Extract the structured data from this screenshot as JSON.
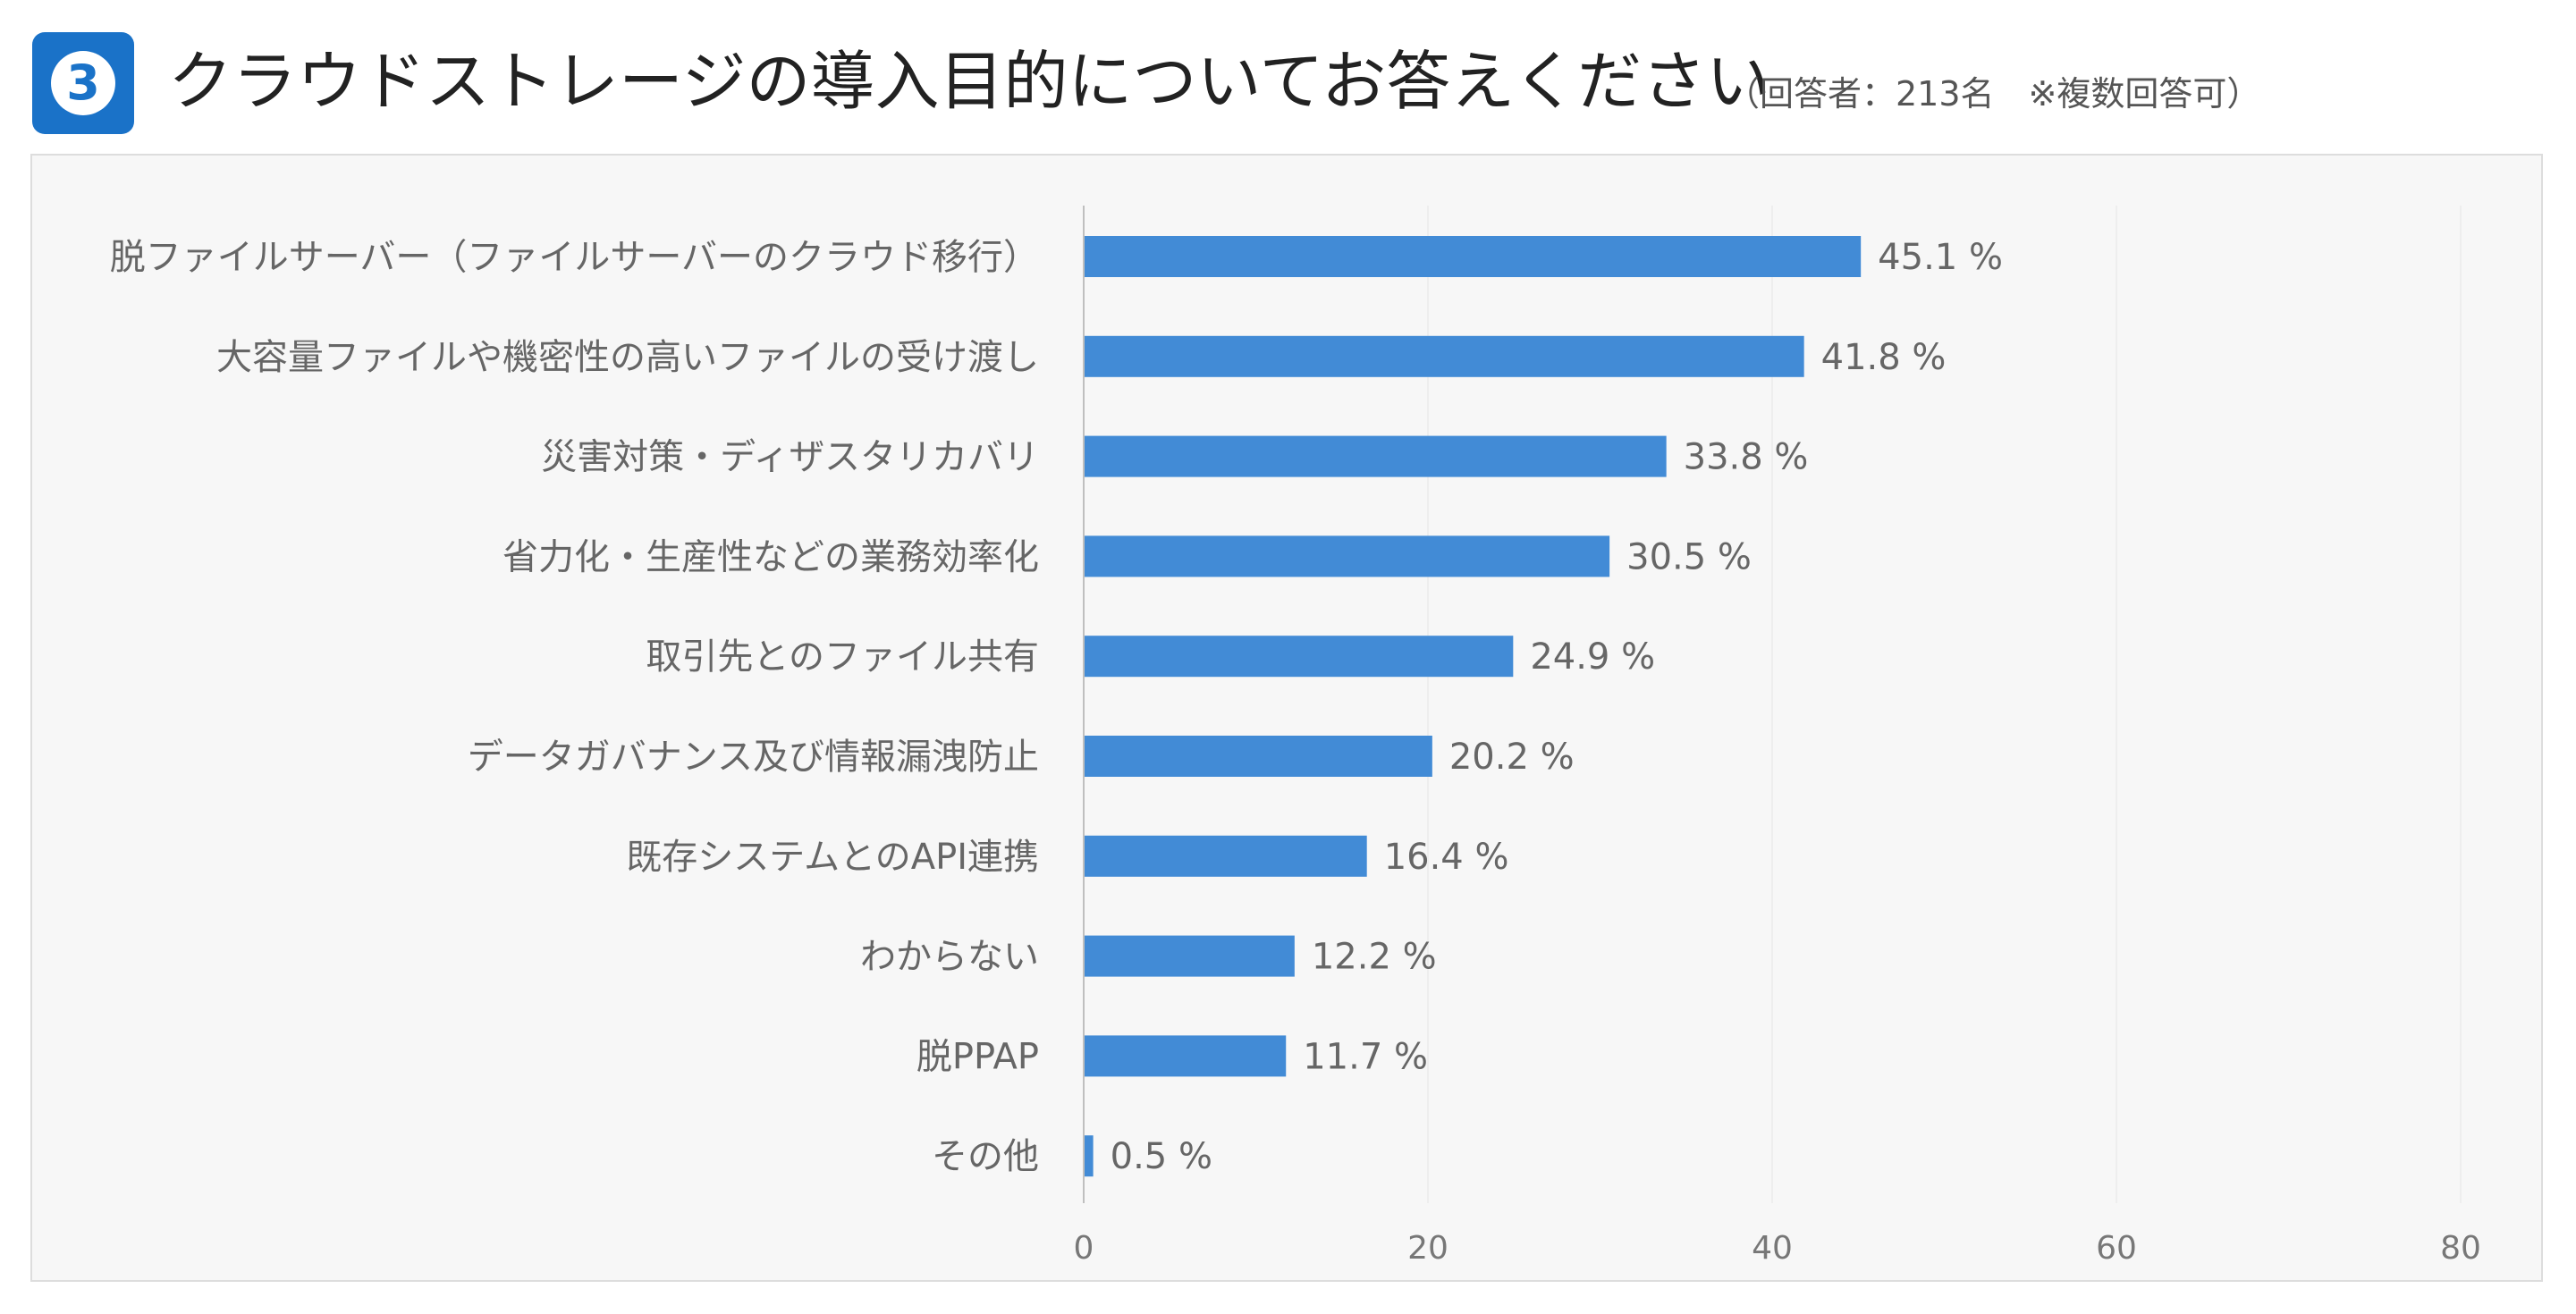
{
  "header": {
    "badge_number": "3",
    "title": "クラウドストレージの導入目的についてお答えください",
    "subtitle": "（回答者：213名　※複数回答可）"
  },
  "chart_data": {
    "type": "bar",
    "orientation": "horizontal",
    "categories": [
      "脱ファイルサーバー（ファイルサーバーのクラウド移行）",
      "大容量ファイルや機密性の高いファイルの受け渡し",
      "災害対策・ディザスタリカバリ",
      "省力化・生産性などの業務効率化",
      "取引先とのファイル共有",
      "データガバナンス及び情報漏洩防止",
      "既存システムとのAPI連携",
      "わからない",
      "脱PPAP",
      "その他"
    ],
    "values": [
      45.1,
      41.8,
      33.8,
      30.5,
      24.9,
      20.2,
      16.4,
      12.2,
      11.7,
      0.5
    ],
    "value_labels": [
      "45.1 %",
      "41.8 %",
      "33.8 %",
      "30.5 %",
      "24.9 %",
      "20.2 %",
      "16.4 %",
      "12.2 %",
      "11.7 %",
      "0.5 %"
    ],
    "xlim": [
      0,
      80
    ],
    "xticks": [
      0,
      20,
      40,
      60,
      80
    ],
    "xtick_labels": [
      "0",
      "20",
      "40",
      "60",
      "80"
    ],
    "grid": true,
    "bar_color": "#428bd6",
    "title": "クラウドストレージの導入目的についてお答えください",
    "xlabel": "",
    "ylabel": ""
  },
  "colors": {
    "badge": "#1a72c8",
    "bar": "#428bd6",
    "panel_bg": "#f7f7f7",
    "text": "#666666"
  }
}
